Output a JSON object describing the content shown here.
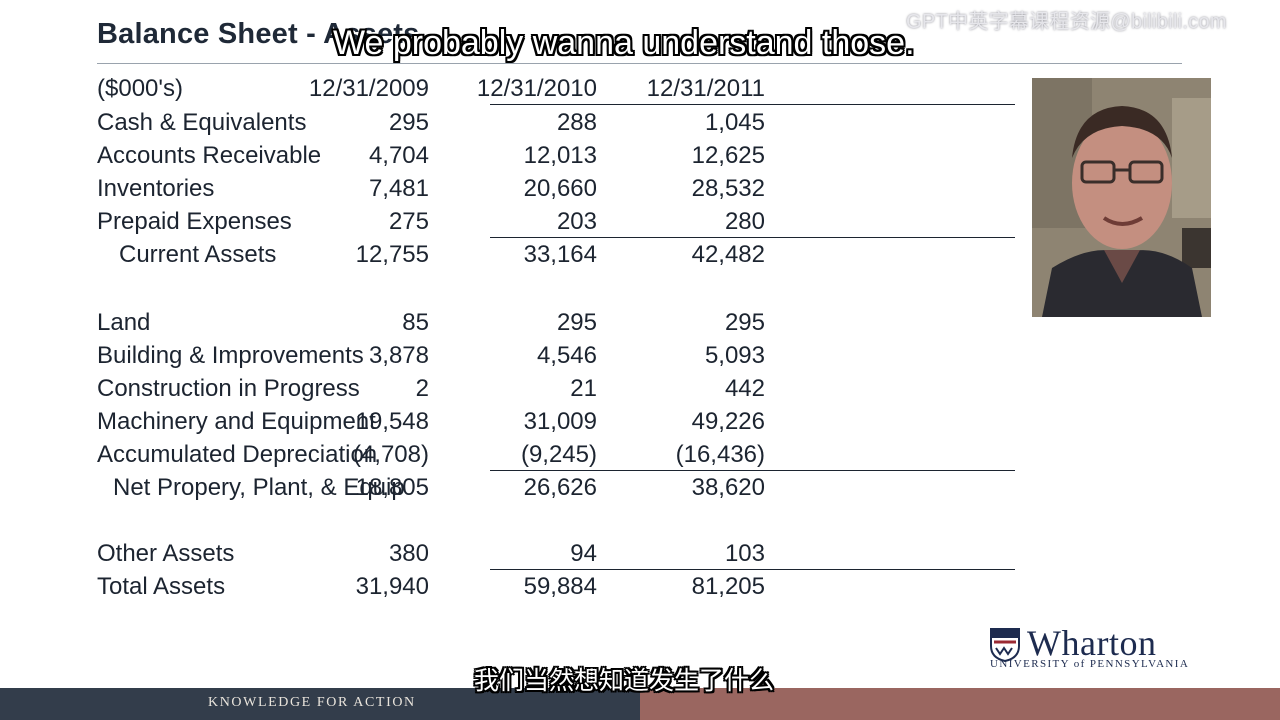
{
  "slide": {
    "title": "Balance Sheet - Assets",
    "units_label": "($000's)",
    "columns": [
      "12/31/2009",
      "12/31/2010",
      "12/31/2011"
    ],
    "rows": [
      {
        "label": "Cash & Equivalents",
        "values": [
          "295",
          "288",
          "1,045"
        ]
      },
      {
        "label": "Accounts Receivable",
        "values": [
          "4,704",
          "12,013",
          "12,625"
        ]
      },
      {
        "label": "Inventories",
        "values": [
          "7,481",
          "20,660",
          "28,532"
        ]
      },
      {
        "label": "Prepaid Expenses",
        "values": [
          "275",
          "203",
          "280"
        ]
      },
      {
        "label": "Current Assets",
        "values": [
          "12,755",
          "33,164",
          "42,482"
        ]
      },
      {
        "label": "Land",
        "values": [
          "85",
          "295",
          "295"
        ]
      },
      {
        "label": "Building & Improvements",
        "values": [
          "3,878",
          "4,546",
          "5,093"
        ]
      },
      {
        "label": "Construction in Progress",
        "values": [
          "2",
          "21",
          "442"
        ]
      },
      {
        "label": "Machinery and Equipment",
        "values": [
          "19,548",
          "31,009",
          "49,226"
        ]
      },
      {
        "label": "Accumulated Depreciation",
        "values": [
          "(4,708)",
          "(9,245)",
          "(16,436)"
        ]
      },
      {
        "label": "Net Propery, Plant, & Equip",
        "values": [
          "18,805",
          "26,626",
          "38,620"
        ]
      },
      {
        "label": "Other Assets",
        "values": [
          "380",
          "94",
          "103"
        ]
      },
      {
        "label": "Total Assets",
        "values": [
          "31,940",
          "59,884",
          "81,205"
        ]
      }
    ]
  },
  "captions": {
    "english": "We probably wanna understand those.",
    "chinese": "我们当然想知道发生了什么"
  },
  "watermark": "GPT中英字幕课程资源@bilibili.com",
  "logo": {
    "wordmark": "Wharton",
    "subtitle": "UNIVERSITY of PENNSYLVANIA"
  },
  "footer": {
    "tagline": "KNOWLEDGE FOR ACTION",
    "left_color": "#333d4b",
    "right_color": "#9a6660"
  },
  "speaker_video": {
    "icon": "presenter-webcam"
  }
}
